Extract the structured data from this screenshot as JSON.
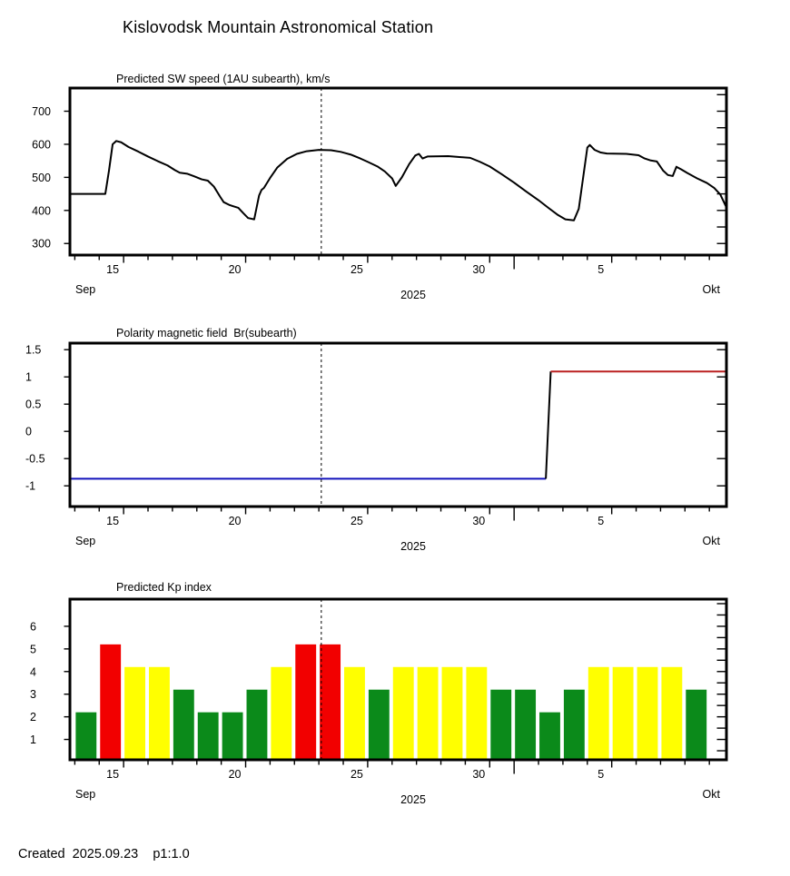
{
  "page": {
    "title": "Kislovodsk Mountain Astronomical Station",
    "footer": "Created  2025.09.23    p1:1.0"
  },
  "axis": {
    "x_domain": [
      12.8,
      39.7
    ],
    "x_minor_tick_days_range": [
      13,
      39
    ],
    "x_labeled_ticks": [
      {
        "day": 15,
        "label": "15"
      },
      {
        "day": 20,
        "label": "20"
      },
      {
        "day": 25,
        "label": "25"
      },
      {
        "day": 30,
        "label": "30"
      },
      {
        "day": 35,
        "label": "5"
      }
    ],
    "x_month_boundary_day": 31,
    "left_month_label": "Sep",
    "center_year_label": "2025",
    "right_month_label": "Okt",
    "current_time_day": 23.1,
    "current_time_marker_color": "#000000"
  },
  "chart_data": [
    {
      "type": "line",
      "title": "Predicted SW speed (1AU subearth), km/s",
      "xlabel": "2025",
      "ylabel_ticks": [
        300,
        400,
        500,
        600,
        700
      ],
      "ylim": [
        265,
        770
      ],
      "right_tick_step": 50,
      "line_color": "#000000",
      "points": [
        [
          12.8,
          450
        ],
        [
          14.25,
          450
        ],
        [
          14.4,
          520
        ],
        [
          14.55,
          600
        ],
        [
          14.7,
          610
        ],
        [
          14.9,
          606
        ],
        [
          15.2,
          592
        ],
        [
          15.6,
          578
        ],
        [
          16.0,
          563
        ],
        [
          16.4,
          549
        ],
        [
          16.8,
          536
        ],
        [
          17.1,
          522
        ],
        [
          17.3,
          514
        ],
        [
          17.6,
          511
        ],
        [
          17.9,
          503
        ],
        [
          18.2,
          494
        ],
        [
          18.45,
          490
        ],
        [
          18.7,
          472
        ],
        [
          18.95,
          442
        ],
        [
          19.1,
          425
        ],
        [
          19.35,
          416
        ],
        [
          19.7,
          408
        ],
        [
          19.9,
          392
        ],
        [
          20.1,
          377
        ],
        [
          20.35,
          373
        ],
        [
          20.55,
          445
        ],
        [
          20.65,
          462
        ],
        [
          20.75,
          468
        ],
        [
          21.0,
          498
        ],
        [
          21.3,
          530
        ],
        [
          21.7,
          556
        ],
        [
          22.1,
          571
        ],
        [
          22.5,
          579
        ],
        [
          23.0,
          583
        ],
        [
          23.5,
          582
        ],
        [
          23.9,
          577
        ],
        [
          24.3,
          569
        ],
        [
          24.7,
          557
        ],
        [
          25.0,
          547
        ],
        [
          25.4,
          533
        ],
        [
          25.7,
          518
        ],
        [
          26.0,
          497
        ],
        [
          26.15,
          474
        ],
        [
          26.4,
          500
        ],
        [
          26.7,
          540
        ],
        [
          26.95,
          566
        ],
        [
          27.1,
          571
        ],
        [
          27.25,
          557
        ],
        [
          27.45,
          563
        ],
        [
          28.3,
          564
        ],
        [
          29.2,
          559
        ],
        [
          29.6,
          547
        ],
        [
          30.0,
          533
        ],
        [
          30.5,
          509
        ],
        [
          31.0,
          484
        ],
        [
          31.5,
          457
        ],
        [
          32.0,
          431
        ],
        [
          32.4,
          408
        ],
        [
          32.8,
          386
        ],
        [
          33.1,
          373
        ],
        [
          33.45,
          370
        ],
        [
          33.65,
          405
        ],
        [
          34.0,
          590
        ],
        [
          34.1,
          598
        ],
        [
          34.3,
          583
        ],
        [
          34.55,
          575
        ],
        [
          34.8,
          572
        ],
        [
          35.6,
          571
        ],
        [
          36.1,
          567
        ],
        [
          36.35,
          557
        ],
        [
          36.6,
          551
        ],
        [
          36.85,
          548
        ],
        [
          37.1,
          521
        ],
        [
          37.3,
          507
        ],
        [
          37.5,
          504
        ],
        [
          37.65,
          532
        ],
        [
          37.85,
          524
        ],
        [
          38.1,
          513
        ],
        [
          38.5,
          497
        ],
        [
          38.9,
          483
        ],
        [
          39.2,
          468
        ],
        [
          39.45,
          448
        ],
        [
          39.7,
          409
        ]
      ]
    },
    {
      "type": "step-line",
      "title": "Polarity magnetic field  Br(subearth)",
      "xlabel": "2025",
      "ylabel_ticks": [
        -1,
        -0.5,
        0,
        0.5,
        1,
        1.5
      ],
      "ylim": [
        -1.38,
        1.62
      ],
      "right_tick_step": 0.5,
      "segments": [
        {
          "name": "negative-polarity",
          "color": "#1111bb",
          "points": [
            [
              12.8,
              -0.87
            ],
            [
              32.3,
              -0.87
            ]
          ]
        },
        {
          "name": "transition",
          "color": "#000000",
          "points": [
            [
              32.3,
              -0.87
            ],
            [
              32.5,
              1.1
            ]
          ]
        },
        {
          "name": "positive-polarity",
          "color": "#bb2020",
          "points": [
            [
              32.5,
              1.1
            ],
            [
              39.7,
              1.1
            ]
          ]
        }
      ]
    },
    {
      "type": "bar",
      "title": "Predicted Kp index",
      "xlabel": "2025",
      "ylabel_ticks": [
        1,
        2,
        3,
        4,
        5,
        6
      ],
      "ylim": [
        0.1,
        7.2
      ],
      "right_tick_step": 0.5,
      "colors": {
        "green": "#0b8a1a",
        "yellow": "#ffff00",
        "red": "#f20000"
      },
      "bars": [
        {
          "day": 13,
          "value": 2.2,
          "color": "green"
        },
        {
          "day": 14,
          "value": 5.2,
          "color": "red"
        },
        {
          "day": 15,
          "value": 4.2,
          "color": "yellow"
        },
        {
          "day": 16,
          "value": 4.2,
          "color": "yellow"
        },
        {
          "day": 17,
          "value": 3.2,
          "color": "green"
        },
        {
          "day": 18,
          "value": 2.2,
          "color": "green"
        },
        {
          "day": 19,
          "value": 2.2,
          "color": "green"
        },
        {
          "day": 20,
          "value": 3.2,
          "color": "green"
        },
        {
          "day": 21,
          "value": 4.2,
          "color": "yellow"
        },
        {
          "day": 22,
          "value": 5.2,
          "color": "red"
        },
        {
          "day": 23,
          "value": 5.2,
          "color": "red"
        },
        {
          "day": 24,
          "value": 4.2,
          "color": "yellow"
        },
        {
          "day": 25,
          "value": 3.2,
          "color": "green"
        },
        {
          "day": 26,
          "value": 4.2,
          "color": "yellow"
        },
        {
          "day": 27,
          "value": 4.2,
          "color": "yellow"
        },
        {
          "day": 28,
          "value": 4.2,
          "color": "yellow"
        },
        {
          "day": 29,
          "value": 4.2,
          "color": "yellow"
        },
        {
          "day": 30,
          "value": 3.2,
          "color": "green"
        },
        {
          "day": 31,
          "value": 3.2,
          "color": "green"
        },
        {
          "day": 32,
          "value": 2.2,
          "color": "green"
        },
        {
          "day": 33,
          "value": 3.2,
          "color": "green"
        },
        {
          "day": 34,
          "value": 4.2,
          "color": "yellow"
        },
        {
          "day": 35,
          "value": 4.2,
          "color": "yellow"
        },
        {
          "day": 36,
          "value": 4.2,
          "color": "yellow"
        },
        {
          "day": 37,
          "value": 4.2,
          "color": "yellow"
        },
        {
          "day": 38,
          "value": 3.2,
          "color": "green"
        }
      ]
    }
  ]
}
